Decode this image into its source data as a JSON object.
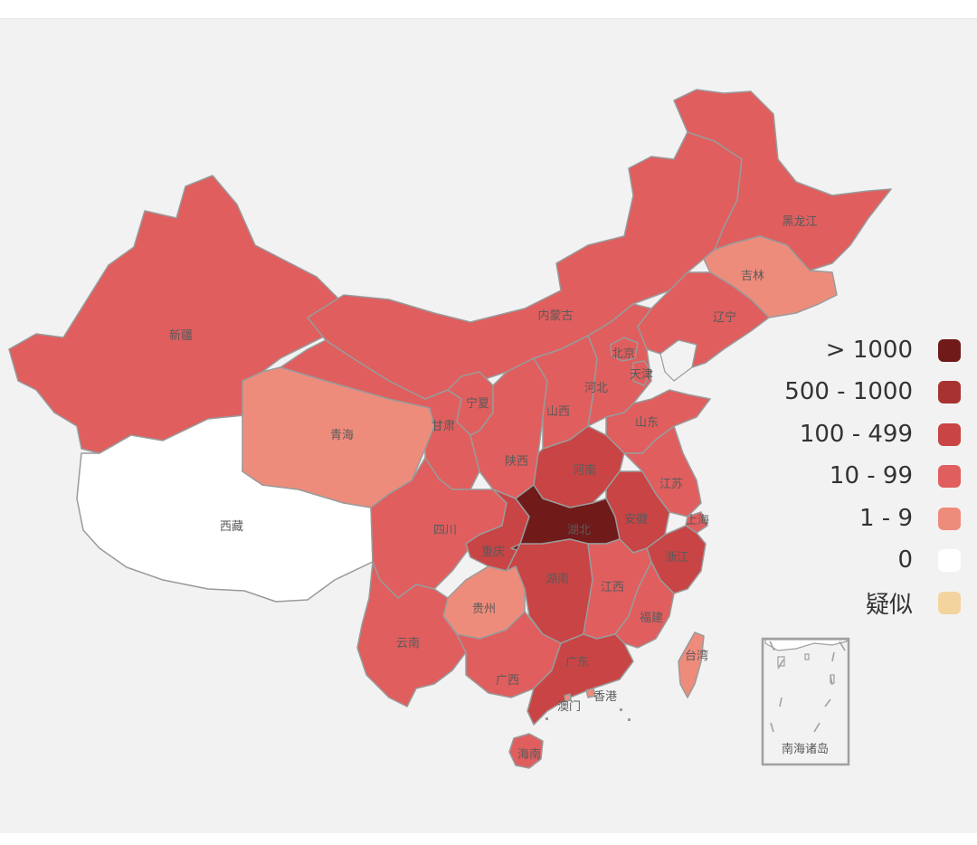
{
  "legend": [
    {
      "label": "> 1000",
      "color": "#701a1a"
    },
    {
      "label": "500 - 1000",
      "color": "#a83232"
    },
    {
      "label": "100 - 499",
      "color": "#c94444"
    },
    {
      "label": "10 - 99",
      "color": "#e05e5e"
    },
    {
      "label": "1 - 9",
      "color": "#ee8c7c"
    },
    {
      "label": "0",
      "color": "#ffffff"
    },
    {
      "label": "疑似",
      "color": "#f3d49f"
    }
  ],
  "provinces": {
    "xinjiang": {
      "name": "新疆",
      "tier": "10 - 99"
    },
    "tibet": {
      "name": "西藏",
      "tier": "0"
    },
    "qinghai": {
      "name": "青海",
      "tier": "1 - 9"
    },
    "gansu": {
      "name": "甘肃",
      "tier": "10 - 99"
    },
    "neimenggu": {
      "name": "内蒙古",
      "tier": "10 - 99"
    },
    "heilongjiang": {
      "name": "黑龙江",
      "tier": "10 - 99"
    },
    "jilin": {
      "name": "吉林",
      "tier": "1 - 9"
    },
    "liaoning": {
      "name": "辽宁",
      "tier": "10 - 99"
    },
    "beijing": {
      "name": "北京",
      "tier": "10 - 99"
    },
    "tianjin": {
      "name": "天津",
      "tier": "10 - 99"
    },
    "hebei": {
      "name": "河北",
      "tier": "10 - 99"
    },
    "ningxia": {
      "name": "宁夏",
      "tier": "10 - 99"
    },
    "shanxi": {
      "name": "山西",
      "tier": "10 - 99"
    },
    "shandong": {
      "name": "山东",
      "tier": "10 - 99"
    },
    "shaanxi": {
      "name": "陕西",
      "tier": "10 - 99"
    },
    "henan": {
      "name": "河南",
      "tier": "100 - 499"
    },
    "jiangsu": {
      "name": "江苏",
      "tier": "10 - 99"
    },
    "shanghai": {
      "name": "上海",
      "tier": "10 - 99"
    },
    "anhui": {
      "name": "安徽",
      "tier": "100 - 499"
    },
    "hubei": {
      "name": "湖北",
      "tier": "> 1000"
    },
    "sichuan": {
      "name": "四川",
      "tier": "10 - 99"
    },
    "chongqing": {
      "name": "重庆",
      "tier": "100 - 499"
    },
    "zhejiang": {
      "name": "浙江",
      "tier": "100 - 499"
    },
    "hunan": {
      "name": "湖南",
      "tier": "100 - 499"
    },
    "jiangxi": {
      "name": "江西",
      "tier": "10 - 99"
    },
    "guizhou": {
      "name": "贵州",
      "tier": "1 - 9"
    },
    "fujian": {
      "name": "福建",
      "tier": "10 - 99"
    },
    "yunnan": {
      "name": "云南",
      "tier": "10 - 99"
    },
    "guangxi": {
      "name": "广西",
      "tier": "10 - 99"
    },
    "guangdong": {
      "name": "广东",
      "tier": "100 - 499"
    },
    "taiwan": {
      "name": "台湾",
      "tier": "1 - 9"
    },
    "hongkong": {
      "name": "香港",
      "tier": "1 - 9"
    },
    "macau": {
      "name": "澳门",
      "tier": "1 - 9"
    },
    "hainan": {
      "name": "海南",
      "tier": "10 - 99"
    }
  },
  "inset": {
    "label": "南海诸岛"
  }
}
